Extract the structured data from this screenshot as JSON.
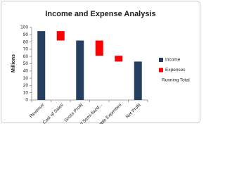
{
  "chart_data": {
    "type": "waterfall",
    "title": "Income and Expense Analysis",
    "y_label": "Millions",
    "categories": [
      "Revenue",
      "Cost of Sales",
      "Gross Profit",
      "Fixed and Semi-fixed...",
      "Variable Expenses",
      "Net Profit"
    ],
    "series": [
      {
        "name": "Income",
        "color": "#243f60",
        "values": [
          95,
          null,
          82,
          null,
          null,
          53
        ]
      },
      {
        "name": "Expenses",
        "color": "#ff0000",
        "values": [
          null,
          13,
          null,
          21,
          8,
          null
        ]
      },
      {
        "name": "Running Total",
        "color": "transparent",
        "values": [
          null,
          82,
          null,
          61,
          53,
          null
        ]
      }
    ],
    "ylim": [
      0,
      100
    ],
    "yticks": [
      0,
      10,
      20,
      30,
      40,
      50,
      60,
      70,
      80,
      90,
      100
    ],
    "grid": false,
    "legend": "right"
  }
}
